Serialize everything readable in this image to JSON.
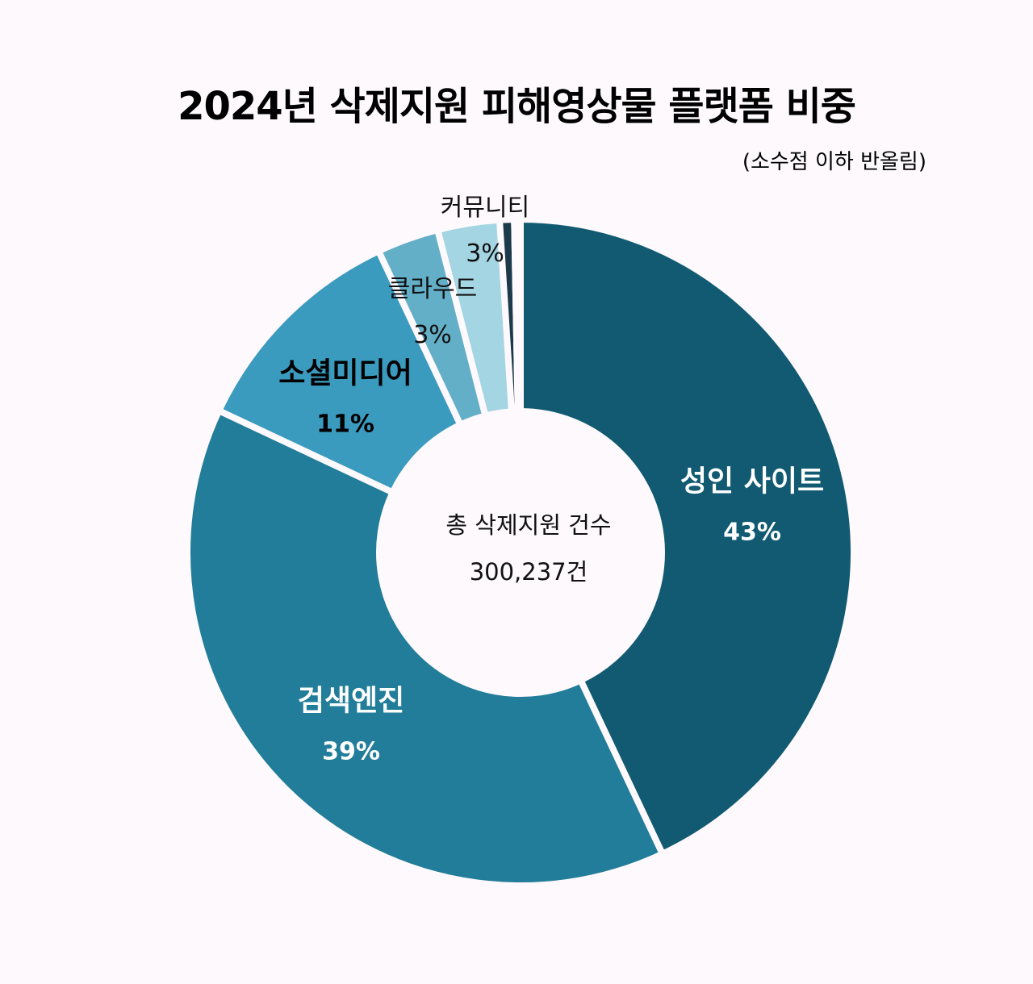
{
  "chart_data": {
    "type": "pie",
    "variant": "donut",
    "title": "2024년 삭제지원 피해영상물 플랫폼 비중",
    "subtitle": "(소수점 이하 반올림)",
    "center_label": {
      "title": "총 삭제지원 건수",
      "value": "300,237건"
    },
    "slices": [
      {
        "label": "성인 사이트",
        "value": 43,
        "value_label": "43%",
        "color": "#115a72"
      },
      {
        "label": "검색엔진",
        "value": 39,
        "value_label": "39%",
        "color": "#217d99"
      },
      {
        "label": "소셜미디어",
        "value": 11,
        "value_label": "11%",
        "color": "#3b9bbf"
      },
      {
        "label": "클라우드",
        "value": 3,
        "value_label": "3%",
        "color": "#64afc8"
      },
      {
        "label": "커뮤니티",
        "value": 3,
        "value_label": "3%",
        "color": "#a4d5e2"
      },
      {
        "label": null,
        "value": 0.7,
        "value_label": null,
        "color": "#1c3a4a"
      },
      {
        "label": null,
        "value": 0.3,
        "value_label": null,
        "color": "#b5552a"
      }
    ]
  }
}
